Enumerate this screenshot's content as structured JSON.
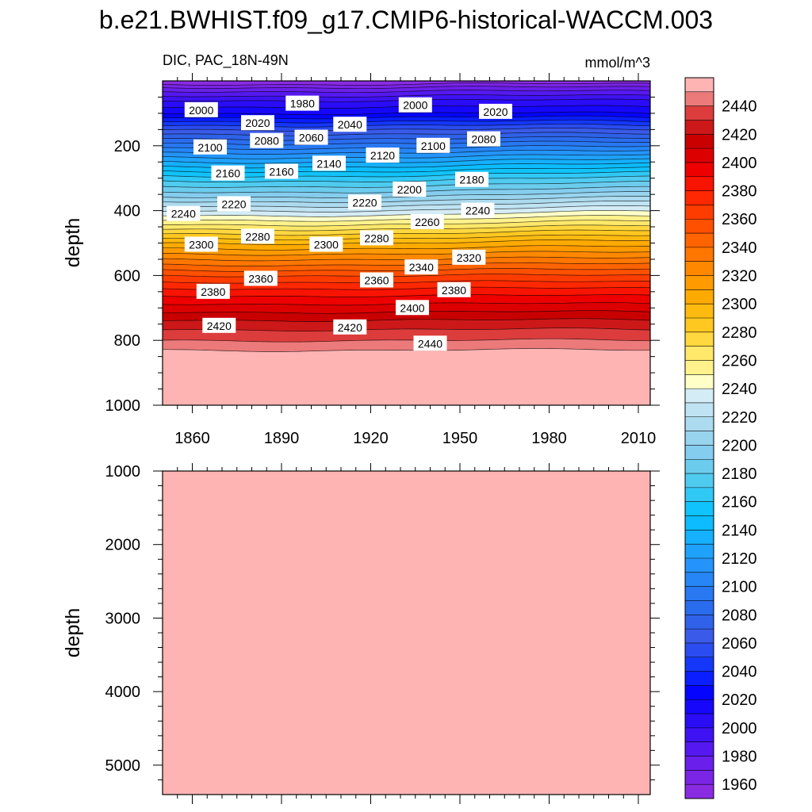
{
  "figure": {
    "title": "b.e21.BWHIST.f09_g17.CMIP6-historical-WACCM.003"
  },
  "chart_data": [
    {
      "type": "contour",
      "panel": "upper",
      "left_label": "DIC, PAC_18N-49N",
      "right_label": "mmol/m^3",
      "xlabel": "",
      "ylabel": "depth",
      "xlim": [
        1850,
        2014
      ],
      "ylim": [
        1000,
        0
      ],
      "x_ticks": [
        "1860",
        "1890",
        "1920",
        "1950",
        "1980",
        "2010"
      ],
      "y_ticks": [
        "200",
        "400",
        "600",
        "800",
        "1000"
      ],
      "depth_profile": {
        "depth": [
          0,
          25,
          60,
          100,
          150,
          200,
          250,
          300,
          350,
          400,
          450,
          500,
          550,
          600,
          650,
          700,
          750,
          800,
          830,
          1000
        ],
        "dic": [
          1950,
          1975,
          2000,
          2020,
          2060,
          2095,
          2130,
          2165,
          2195,
          2230,
          2265,
          2300,
          2330,
          2360,
          2385,
          2405,
          2425,
          2440,
          2450,
          2455
        ]
      },
      "contour_labels": [
        {
          "text": "2000",
          "year": 1863,
          "depth": 90
        },
        {
          "text": "1980",
          "year": 1897,
          "depth": 70
        },
        {
          "text": "2000",
          "year": 1935,
          "depth": 75
        },
        {
          "text": "2020",
          "year": 1962,
          "depth": 95
        },
        {
          "text": "2020",
          "year": 1882,
          "depth": 130
        },
        {
          "text": "2040",
          "year": 1913,
          "depth": 135
        },
        {
          "text": "2060",
          "year": 1900,
          "depth": 175
        },
        {
          "text": "2080",
          "year": 1885,
          "depth": 185
        },
        {
          "text": "2080",
          "year": 1958,
          "depth": 180
        },
        {
          "text": "2100",
          "year": 1866,
          "depth": 205
        },
        {
          "text": "2100",
          "year": 1941,
          "depth": 200
        },
        {
          "text": "2120",
          "year": 1924,
          "depth": 230
        },
        {
          "text": "2140",
          "year": 1906,
          "depth": 255
        },
        {
          "text": "2160",
          "year": 1872,
          "depth": 285
        },
        {
          "text": "2160",
          "year": 1890,
          "depth": 280
        },
        {
          "text": "2180",
          "year": 1954,
          "depth": 305
        },
        {
          "text": "2200",
          "year": 1933,
          "depth": 335
        },
        {
          "text": "2220",
          "year": 1874,
          "depth": 380
        },
        {
          "text": "2220",
          "year": 1918,
          "depth": 375
        },
        {
          "text": "2240",
          "year": 1857,
          "depth": 410
        },
        {
          "text": "2240",
          "year": 1956,
          "depth": 400
        },
        {
          "text": "2260",
          "year": 1939,
          "depth": 435
        },
        {
          "text": "2280",
          "year": 1882,
          "depth": 480
        },
        {
          "text": "2280",
          "year": 1922,
          "depth": 485
        },
        {
          "text": "2300",
          "year": 1863,
          "depth": 505
        },
        {
          "text": "2300",
          "year": 1905,
          "depth": 505
        },
        {
          "text": "2320",
          "year": 1953,
          "depth": 545
        },
        {
          "text": "2340",
          "year": 1937,
          "depth": 575
        },
        {
          "text": "2360",
          "year": 1883,
          "depth": 610
        },
        {
          "text": "2360",
          "year": 1922,
          "depth": 615
        },
        {
          "text": "2380",
          "year": 1867,
          "depth": 650
        },
        {
          "text": "2380",
          "year": 1948,
          "depth": 645
        },
        {
          "text": "2400",
          "year": 1934,
          "depth": 700
        },
        {
          "text": "2420",
          "year": 1869,
          "depth": 755
        },
        {
          "text": "2420",
          "year": 1913,
          "depth": 760
        },
        {
          "text": "2440",
          "year": 1940,
          "depth": 810
        }
      ]
    },
    {
      "type": "contour",
      "panel": "lower",
      "ylabel": "depth",
      "xlim": [
        1850,
        2014
      ],
      "ylim": [
        5400,
        1000
      ],
      "y_ticks": [
        "1000",
        "2000",
        "3000",
        "4000",
        "5000"
      ],
      "uniform_value": 2460
    }
  ],
  "colorbar": {
    "levels": [
      1960,
      1970,
      1980,
      1990,
      2000,
      2010,
      2020,
      2030,
      2040,
      2050,
      2060,
      2070,
      2080,
      2090,
      2100,
      2110,
      2120,
      2130,
      2140,
      2150,
      2160,
      2170,
      2180,
      2190,
      2200,
      2210,
      2220,
      2230,
      2240,
      2250,
      2260,
      2270,
      2280,
      2290,
      2300,
      2310,
      2320,
      2330,
      2340,
      2350,
      2360,
      2370,
      2380,
      2390,
      2400,
      2410,
      2420,
      2430,
      2440,
      2450
    ],
    "labels": [
      "1960",
      "1980",
      "2000",
      "2020",
      "2040",
      "2060",
      "2080",
      "2100",
      "2120",
      "2140",
      "2160",
      "2180",
      "2200",
      "2220",
      "2240",
      "2260",
      "2280",
      "2300",
      "2320",
      "2340",
      "2360",
      "2380",
      "2400",
      "2420",
      "2440"
    ],
    "colors": [
      "#8a2be2",
      "#7a24e6",
      "#6a1fea",
      "#5519ef",
      "#3f12f3",
      "#2a0cf7",
      "#1607fb",
      "#0505ff",
      "#0a1eff",
      "#1437fa",
      "#2a4cf0",
      "#3a5ae8",
      "#2f62e8",
      "#2a6cee",
      "#2878f2",
      "#2686f6",
      "#2494fa",
      "#1fa2fc",
      "#15b0fe",
      "#0cbcfe",
      "#10c3fa",
      "#30c8f5",
      "#50cbf0",
      "#6cccee",
      "#85cdee",
      "#98d4ee",
      "#acdaef",
      "#bfe3f2",
      "#d4ecf6",
      "#ffffc8",
      "#fff28c",
      "#ffe86a",
      "#ffd840",
      "#ffc820",
      "#ffba10",
      "#ffaa00",
      "#ff9a00",
      "#ff8800",
      "#ff7600",
      "#ff6400",
      "#ff5000",
      "#ff3c00",
      "#ff2800",
      "#f81400",
      "#ee0000",
      "#dc0000",
      "#c80000",
      "#cc1818",
      "#dc3c3c",
      "#ec7a7a",
      "#ffb4b4"
    ]
  }
}
